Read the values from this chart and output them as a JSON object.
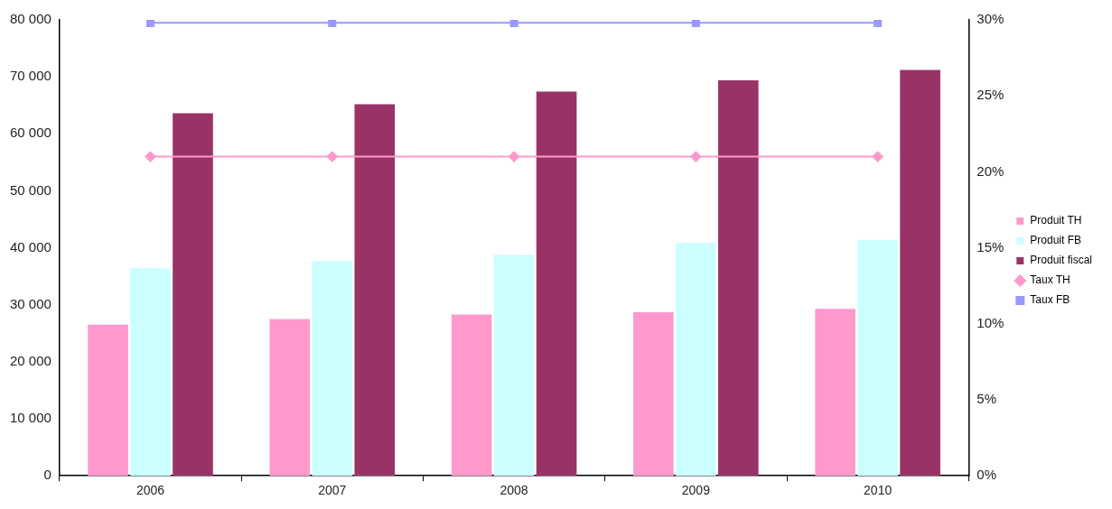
{
  "chart_data": {
    "type": "bar",
    "categories": [
      "2006",
      "2007",
      "2008",
      "2009",
      "2010"
    ],
    "series": [
      {
        "name": "Produit TH",
        "color": "#ff99cc",
        "values": [
          26500,
          27500,
          28300,
          28700,
          29300
        ]
      },
      {
        "name": "Produit FB",
        "color": "#ccffff",
        "values": [
          36400,
          37700,
          38800,
          40900,
          41400
        ]
      },
      {
        "name": "Produit fiscal",
        "color": "#993366",
        "values": [
          63600,
          65200,
          67400,
          69400,
          71200
        ]
      },
      {
        "name": "Taux TH",
        "type": "line",
        "axis": "y2",
        "color": "#ff99cc",
        "marker": "diamond",
        "values": [
          21,
          21,
          21,
          21,
          21
        ]
      },
      {
        "name": "Taux FB",
        "type": "line",
        "axis": "y2",
        "color": "#9999ff",
        "marker": "square",
        "values": [
          29.8,
          29.8,
          29.8,
          29.8,
          29.8
        ]
      }
    ],
    "ylim": [
      0,
      80000
    ],
    "yticks": [
      0,
      {
        "value": 10000,
        "label": "10 000"
      },
      {
        "value": 20000,
        "label": "20 000"
      },
      {
        "value": 30000,
        "label": "30 000"
      },
      {
        "value": 40000,
        "label": "40 000"
      },
      {
        "value": 50000,
        "label": "50 000"
      },
      {
        "value": 60000,
        "label": "60 000"
      },
      {
        "value": 70000,
        "label": "70 000"
      },
      {
        "value": 80000,
        "label": "80 000"
      }
    ],
    "y2lim": [
      0,
      30
    ],
    "y2ticks": [
      {
        "value": 0,
        "label": "0%"
      },
      {
        "value": 5,
        "label": "5%"
      },
      {
        "value": 10,
        "label": "10%"
      },
      {
        "value": 15,
        "label": "15%"
      },
      {
        "value": 20,
        "label": "20%"
      },
      {
        "value": 25,
        "label": "25%"
      },
      {
        "value": 30,
        "label": "30%"
      }
    ],
    "grid": false,
    "legend": "right"
  }
}
